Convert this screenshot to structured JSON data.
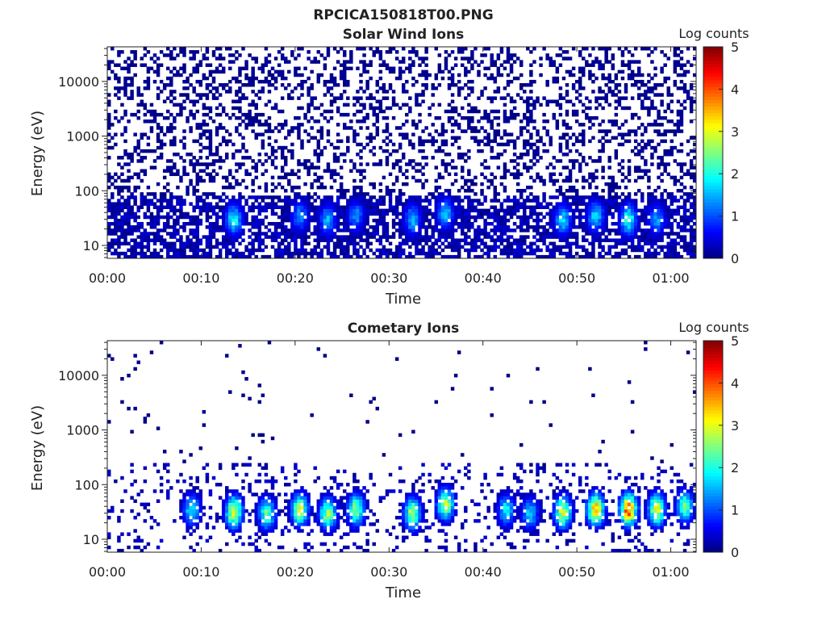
{
  "figure_title": "RPCICA150818T00.PNG",
  "colorbar_label": "Log counts",
  "chart_data": [
    {
      "type": "heatmap",
      "title": "Solar Wind Ions",
      "xlabel": "Time",
      "ylabel": "Energy (eV)",
      "x_tick_labels": [
        "00:00",
        "00:10",
        "00:20",
        "00:30",
        "00:40",
        "00:50",
        "01:00"
      ],
      "x_tick_values_min": [
        0,
        10,
        20,
        30,
        40,
        50,
        60
      ],
      "xlim_min": [
        0,
        62.7
      ],
      "y_scale": "log",
      "y_tick_labels": [
        "10",
        "100",
        "1000",
        "10000"
      ],
      "y_tick_values": [
        10,
        100,
        1000,
        10000
      ],
      "ylim": [
        5.8,
        43000
      ],
      "colorbar": {
        "label": "Log counts",
        "range": [
          0,
          5
        ],
        "ticks": [
          "0",
          "1",
          "2",
          "3",
          "4",
          "5"
        ],
        "colormap": "jet"
      },
      "features": {
        "background_level": 0.15,
        "background_range_ev": [
          5.8,
          43000
        ],
        "low_energy_band_ev": [
          5.8,
          80
        ],
        "enhancements": [
          {
            "t_min": 13.5,
            "energy_ev": 30,
            "log_counts": 2.0
          },
          {
            "t_min": 20.5,
            "energy_ev": 35,
            "log_counts": 1.4
          },
          {
            "t_min": 23.5,
            "energy_ev": 30,
            "log_counts": 1.6
          },
          {
            "t_min": 26.5,
            "energy_ev": 35,
            "log_counts": 1.4
          },
          {
            "t_min": 32.5,
            "energy_ev": 30,
            "log_counts": 1.6
          },
          {
            "t_min": 36.0,
            "energy_ev": 40,
            "log_counts": 1.7
          },
          {
            "t_min": 48.5,
            "energy_ev": 30,
            "log_counts": 1.8
          },
          {
            "t_min": 52.0,
            "energy_ev": 35,
            "log_counts": 1.8
          },
          {
            "t_min": 55.5,
            "energy_ev": 30,
            "log_counts": 2.2
          },
          {
            "t_min": 58.5,
            "energy_ev": 30,
            "log_counts": 1.5
          }
        ]
      }
    },
    {
      "type": "heatmap",
      "title": "Cometary Ions",
      "xlabel": "Time",
      "ylabel": "Energy (eV)",
      "x_tick_labels": [
        "00:00",
        "00:10",
        "00:20",
        "00:30",
        "00:40",
        "00:50",
        "01:00"
      ],
      "x_tick_values_min": [
        0,
        10,
        20,
        30,
        40,
        50,
        60
      ],
      "xlim_min": [
        0,
        62.7
      ],
      "y_scale": "log",
      "y_tick_labels": [
        "10",
        "100",
        "1000",
        "10000"
      ],
      "y_tick_values": [
        10,
        100,
        1000,
        10000
      ],
      "ylim": [
        5.8,
        43000
      ],
      "colorbar": {
        "label": "Log counts",
        "range": [
          0,
          5
        ],
        "ticks": [
          "0",
          "1",
          "2",
          "3",
          "4",
          "5"
        ],
        "colormap": "jet"
      },
      "features": {
        "background_level": 0.05,
        "background_range_ev": [
          200,
          43000
        ],
        "low_energy_band_ev": [
          5.8,
          250
        ],
        "enhancements": [
          {
            "t_min": 9.0,
            "energy_ev": 35,
            "log_counts": 2.0
          },
          {
            "t_min": 13.5,
            "energy_ev": 32,
            "log_counts": 3.3
          },
          {
            "t_min": 17.0,
            "energy_ev": 30,
            "log_counts": 2.5
          },
          {
            "t_min": 20.5,
            "energy_ev": 35,
            "log_counts": 3.0
          },
          {
            "t_min": 23.5,
            "energy_ev": 30,
            "log_counts": 2.8
          },
          {
            "t_min": 26.5,
            "energy_ev": 35,
            "log_counts": 2.8
          },
          {
            "t_min": 32.5,
            "energy_ev": 30,
            "log_counts": 2.9
          },
          {
            "t_min": 36.0,
            "energy_ev": 45,
            "log_counts": 3.0
          },
          {
            "t_min": 42.5,
            "energy_ev": 35,
            "log_counts": 2.0
          },
          {
            "t_min": 45.0,
            "energy_ev": 30,
            "log_counts": 1.8
          },
          {
            "t_min": 48.5,
            "energy_ev": 32,
            "log_counts": 3.2
          },
          {
            "t_min": 52.0,
            "energy_ev": 35,
            "log_counts": 3.7
          },
          {
            "t_min": 55.5,
            "energy_ev": 35,
            "log_counts": 4.2
          },
          {
            "t_min": 58.5,
            "energy_ev": 35,
            "log_counts": 3.2
          },
          {
            "t_min": 61.5,
            "energy_ev": 40,
            "log_counts": 2.6
          }
        ]
      }
    }
  ]
}
